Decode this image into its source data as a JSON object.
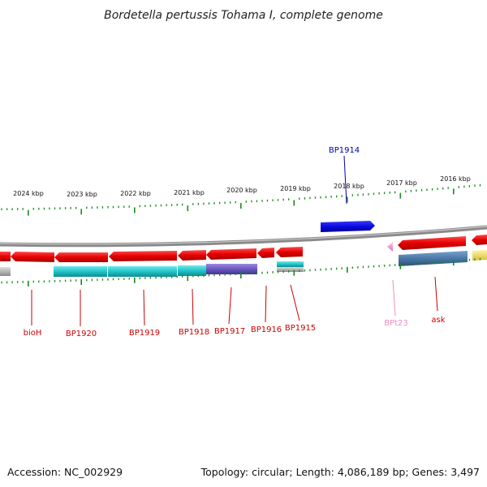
{
  "title": "Bordetella pertussis Tohama I, complete genome",
  "footer": {
    "accession": "Accession: NC_002929",
    "summary": "Topology: circular; Length: 4,086,189 bp; Genes: 3,497"
  },
  "scale_labels": [
    "2024 kbp",
    "2023 kbp",
    "2022 kbp",
    "2021 kbp",
    "2020 kbp",
    "2019 kbp",
    "2018 kbp",
    "2017 kbp",
    "2016 kbp"
  ],
  "gene_labels": [
    {
      "name": "bioH",
      "color": "#cc0000"
    },
    {
      "name": "BP1920",
      "color": "#cc0000"
    },
    {
      "name": "BP1919",
      "color": "#cc0000"
    },
    {
      "name": "BP1918",
      "color": "#cc0000"
    },
    {
      "name": "BP1917",
      "color": "#cc0000"
    },
    {
      "name": "BP1916",
      "color": "#cc0000"
    },
    {
      "name": "BP1915",
      "color": "#cc0000"
    },
    {
      "name": "BPt23",
      "color": "#f08cc0"
    },
    {
      "name": "ask",
      "color": "#cc0000"
    },
    {
      "name": "BP1914",
      "color": "#0000aa"
    }
  ],
  "colors": {
    "cds": "#e60000",
    "forward_cds": "#0a0ae0",
    "trna": "#f4a0d0",
    "cog_cyan": "#20c4c8",
    "cog_purple": "#6a58c0",
    "cog_steel": "#4a78a8",
    "cog_yellow": "#f0e070",
    "cog_gray": "#b8b8b8",
    "backbone": "#8a8a8a",
    "tick": "#1a8a1a"
  }
}
